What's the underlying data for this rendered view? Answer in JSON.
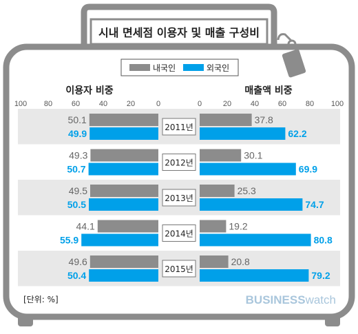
{
  "title": "시내 면세점 이용자 및 매출 구성비",
  "unit_note": "[단위: %]",
  "brand": {
    "bold": "BUSINESS",
    "light": "watch"
  },
  "colors": {
    "domestic": "#8c8c8c",
    "foreign": "#00a0e9",
    "frame": "#8c8c8c",
    "band": "#e8e8e8",
    "brand": "#a9c6dc"
  },
  "chart_data": [
    {
      "type": "bar",
      "orientation": "horizontal",
      "title": "이용자 비중",
      "categories": [
        "2011년",
        "2012년",
        "2013년",
        "2014년",
        "2015년"
      ],
      "xlim": [
        0,
        100
      ],
      "ticks": [
        "100",
        "80",
        "60",
        "40",
        "20",
        "0"
      ],
      "direction": "right-to-left",
      "series": [
        {
          "name": "내국인",
          "values": [
            50.1,
            49.3,
            49.5,
            44.1,
            49.6
          ],
          "labels": [
            "50.1",
            "49.3",
            "49.5",
            "44.1",
            "49.6"
          ]
        },
        {
          "name": "외국인",
          "values": [
            49.9,
            50.7,
            50.5,
            55.9,
            50.4
          ],
          "labels": [
            "49.9",
            "50.7",
            "50.5",
            "55.9",
            "50.4"
          ]
        }
      ]
    },
    {
      "type": "bar",
      "orientation": "horizontal",
      "title": "매출액 비중",
      "categories": [
        "2011년",
        "2012년",
        "2013년",
        "2014년",
        "2015년"
      ],
      "xlim": [
        0,
        100
      ],
      "ticks": [
        "0",
        "20",
        "40",
        "60",
        "80",
        "100"
      ],
      "direction": "left-to-right",
      "series": [
        {
          "name": "내국인",
          "values": [
            37.8,
            30.1,
            25.3,
            19.2,
            20.8
          ],
          "labels": [
            "37.8",
            "30.1",
            "25.3",
            "19.2",
            "20.8"
          ]
        },
        {
          "name": "외국인",
          "values": [
            62.2,
            69.9,
            74.7,
            80.8,
            79.2
          ],
          "labels": [
            "62.2",
            "69.9",
            "74.7",
            "80.8",
            "79.2"
          ]
        }
      ]
    }
  ]
}
